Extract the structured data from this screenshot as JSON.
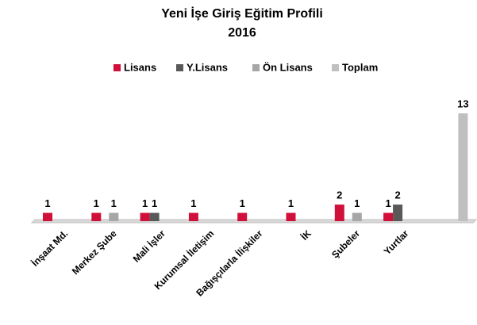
{
  "chart_data": {
    "type": "bar",
    "title": "Yeni İşe Giriş Eğitim Profili",
    "subtitle": "2016",
    "categories": [
      "İnşaat Md.",
      "Merkez Şube",
      "Mali İşler",
      "Kurumsal İletişim",
      "Bağışçılarla İlişkiler",
      "İK",
      "Şubeler",
      "Yurtlar",
      null
    ],
    "series": [
      {
        "name": "Lisans",
        "color": "#d0103a",
        "values": [
          1,
          1,
          1,
          1,
          1,
          1,
          2,
          1,
          null
        ]
      },
      {
        "name": "Y.Lisans",
        "color": "#595959",
        "values": [
          null,
          null,
          1,
          null,
          null,
          null,
          null,
          2,
          null
        ]
      },
      {
        "name": "Ön Lisans",
        "color": "#a6a6a6",
        "values": [
          null,
          1,
          null,
          null,
          null,
          null,
          1,
          null,
          null
        ]
      },
      {
        "name": "Toplam",
        "color": "#bfbfbf",
        "values": [
          null,
          null,
          null,
          null,
          null,
          null,
          null,
          null,
          13
        ]
      }
    ],
    "legend": "top"
  }
}
